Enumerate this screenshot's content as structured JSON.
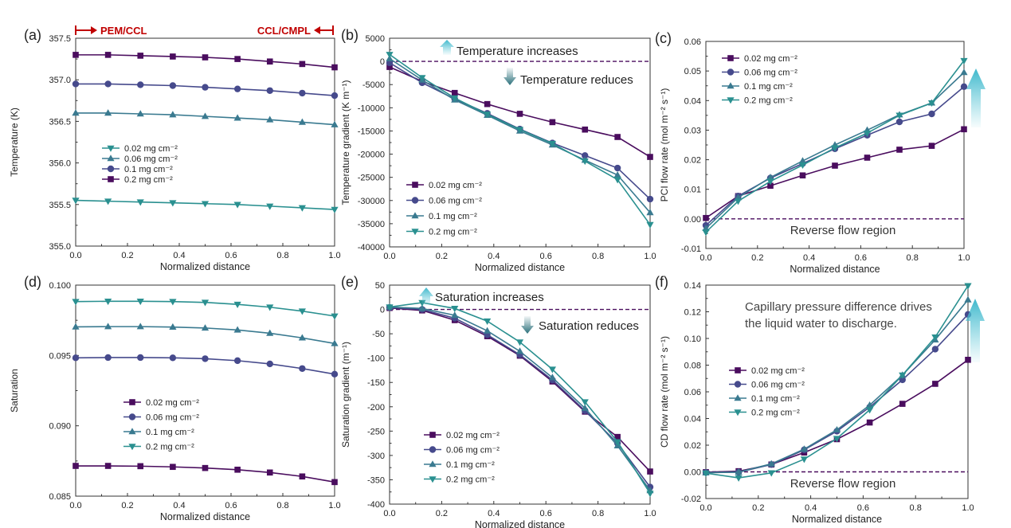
{
  "figure": {
    "xlabel": "Normalized distance",
    "annotations": {
      "pem_ccl": "PEM/CCL",
      "ccl_cmpl": "CCL/CMPL",
      "temp_increases": "Temperature increases",
      "temp_reduces": "Temperature reduces",
      "sat_increases": "Saturation increases",
      "sat_reduces": "Saturation reduces",
      "reverse_flow": "Reverse flow region",
      "capillary_line1": "Capillary pressure difference drives",
      "capillary_line2": "the liquid water to discharge."
    }
  },
  "colors": {
    "s0": "#4a0d5e",
    "s1": "#464a8c",
    "s2": "#3a7a90",
    "s3": "#2a9090",
    "annotation_red": "#c00000",
    "arrow_up": "#5cc8d8",
    "arrow_down": "#2a6f7a",
    "dashed": "#4a0d5e"
  },
  "chart_data": [
    {
      "panel": "(a)",
      "type": "line",
      "xlabel": "Normalized distance",
      "ylabel": "Temperature (K)",
      "xlim": [
        0,
        1
      ],
      "ylim": [
        355.0,
        357.5
      ],
      "xticks": [
        0.0,
        0.2,
        0.4,
        0.6,
        0.8,
        1.0
      ],
      "xtick_labels": [
        "0.0",
        "0.2",
        "0.4",
        "0.6",
        "0.8",
        "1.0"
      ],
      "yticks": [
        355.0,
        355.5,
        356.0,
        356.5,
        357.0,
        357.5
      ],
      "ytick_labels": [
        "355.0",
        "355.5",
        "356.0",
        "356.5",
        "357.0",
        "357.5"
      ],
      "legend_position": "center-left",
      "legend_order": [
        3,
        2,
        1,
        0
      ],
      "x": [
        0,
        0.125,
        0.25,
        0.375,
        0.5,
        0.625,
        0.75,
        0.875,
        1.0
      ],
      "series": [
        {
          "name": "0.2 mg cm⁻²",
          "marker": "square",
          "values": [
            357.3,
            357.3,
            357.29,
            357.28,
            357.27,
            357.25,
            357.22,
            357.19,
            357.15
          ]
        },
        {
          "name": "0.1 mg cm⁻²",
          "marker": "circle",
          "values": [
            356.95,
            356.95,
            356.94,
            356.93,
            356.91,
            356.89,
            356.87,
            356.84,
            356.81
          ]
        },
        {
          "name": "0.06 mg cm⁻²",
          "marker": "triangle-up",
          "values": [
            356.6,
            356.6,
            356.59,
            356.58,
            356.56,
            356.54,
            356.52,
            356.49,
            356.46
          ]
        },
        {
          "name": "0.02 mg cm⁻²",
          "marker": "triangle-down",
          "values": [
            355.55,
            355.54,
            355.53,
            355.52,
            355.51,
            355.5,
            355.48,
            355.46,
            355.44
          ]
        }
      ]
    },
    {
      "panel": "(b)",
      "type": "line",
      "xlabel": "Normalized distance",
      "ylabel": "Temperature gradient (K m⁻¹)",
      "xlim": [
        0,
        1
      ],
      "ylim": [
        -40000,
        5000
      ],
      "xticks": [
        0.0,
        0.2,
        0.4,
        0.6,
        0.8,
        1.0
      ],
      "xtick_labels": [
        "0.0",
        "0.2",
        "0.4",
        "0.6",
        "0.8",
        "1.0"
      ],
      "yticks": [
        -40000,
        -35000,
        -30000,
        -25000,
        -20000,
        -15000,
        -10000,
        -5000,
        0,
        5000
      ],
      "ytick_labels": [
        "-40000",
        "-35000",
        "-30000",
        "-25000",
        "-20000",
        "-15000",
        "-10000",
        "-5000",
        "0",
        "5000"
      ],
      "zero_line": true,
      "legend_position": "bottom-left",
      "legend_order": [
        0,
        1,
        2,
        3
      ],
      "x": [
        0,
        0.125,
        0.25,
        0.375,
        0.5,
        0.625,
        0.75,
        0.875,
        1.0
      ],
      "series": [
        {
          "name": "0.02 mg cm⁻²",
          "marker": "square",
          "values": [
            -1200,
            -4300,
            -6800,
            -9200,
            -11300,
            -13100,
            -14700,
            -16300,
            -20600
          ]
        },
        {
          "name": "0.06 mg cm⁻²",
          "marker": "circle",
          "values": [
            -300,
            -4600,
            -8100,
            -11200,
            -14600,
            -17600,
            -20300,
            -23000,
            -29700
          ]
        },
        {
          "name": "0.1 mg cm⁻²",
          "marker": "triangle-up",
          "values": [
            600,
            -4000,
            -8300,
            -11600,
            -15000,
            -18000,
            -21300,
            -24500,
            -32600
          ]
        },
        {
          "name": "0.2 mg cm⁻²",
          "marker": "triangle-down",
          "values": [
            1500,
            -3500,
            -7900,
            -11400,
            -14700,
            -17700,
            -21500,
            -25500,
            -35200
          ]
        }
      ]
    },
    {
      "panel": "(c)",
      "type": "line",
      "xlabel": "Normalized distance",
      "ylabel": "PCI flow rate (mol m⁻² s⁻¹)",
      "xlim": [
        0,
        1
      ],
      "ylim": [
        -0.01,
        0.06
      ],
      "xticks": [
        0.0,
        0.2,
        0.4,
        0.6,
        0.8,
        1.0
      ],
      "xtick_labels": [
        "0.0",
        "0.2",
        "0.4",
        "0.6",
        "0.8",
        "1.0"
      ],
      "yticks": [
        -0.01,
        0.0,
        0.01,
        0.02,
        0.03,
        0.04,
        0.05,
        0.06
      ],
      "ytick_labels": [
        "-0.01",
        "0.00",
        "0.01",
        "0.02",
        "0.03",
        "0.04",
        "0.05",
        "0.06"
      ],
      "zero_line": true,
      "legend_position": "top-left",
      "legend_order": [
        0,
        1,
        2,
        3
      ],
      "x": [
        0,
        0.125,
        0.25,
        0.375,
        0.5,
        0.625,
        0.75,
        0.875,
        1.0
      ],
      "series": [
        {
          "name": "0.02 mg cm⁻²",
          "marker": "square",
          "values": [
            0.0003,
            0.0077,
            0.0112,
            0.0147,
            0.018,
            0.0207,
            0.0234,
            0.0247,
            0.0303
          ]
        },
        {
          "name": "0.06 mg cm⁻²",
          "marker": "circle",
          "values": [
            -0.0022,
            0.0077,
            0.0138,
            0.0187,
            0.0237,
            0.0283,
            0.0328,
            0.0355,
            0.0447
          ]
        },
        {
          "name": "0.1 mg cm⁻²",
          "marker": "triangle-up",
          "values": [
            -0.0032,
            0.0072,
            0.014,
            0.0196,
            0.025,
            0.03,
            0.0352,
            0.0392,
            0.0495
          ]
        },
        {
          "name": "0.2 mg cm⁻²",
          "marker": "triangle-down",
          "values": [
            -0.0045,
            0.006,
            0.0127,
            0.0182,
            0.024,
            0.029,
            0.035,
            0.0392,
            0.0535
          ]
        }
      ]
    },
    {
      "panel": "(d)",
      "type": "line",
      "xlabel": "Normalized distance",
      "ylabel": "Saturation",
      "xlim": [
        0,
        1
      ],
      "ylim": [
        0.085,
        0.1
      ],
      "xticks": [
        0.0,
        0.2,
        0.4,
        0.6,
        0.8,
        1.0
      ],
      "xtick_labels": [
        "0.0",
        "0.2",
        "0.4",
        "0.6",
        "0.8",
        "1.0"
      ],
      "yticks": [
        0.085,
        0.09,
        0.095,
        0.1
      ],
      "ytick_labels": [
        "0.085",
        "0.090",
        "0.095",
        "0.100"
      ],
      "legend_position": "center-left",
      "legend_order": [
        0,
        1,
        2,
        3
      ],
      "x": [
        0,
        0.125,
        0.25,
        0.375,
        0.5,
        0.625,
        0.75,
        0.875,
        1.0
      ],
      "series": [
        {
          "name": "0.02 mg cm⁻²",
          "marker": "square",
          "values": [
            0.08715,
            0.08715,
            0.08713,
            0.08708,
            0.087,
            0.08688,
            0.08668,
            0.0864,
            0.086
          ]
        },
        {
          "name": "0.06 mg cm⁻²",
          "marker": "circle",
          "values": [
            0.09483,
            0.09485,
            0.09485,
            0.09483,
            0.09477,
            0.09463,
            0.0944,
            0.09407,
            0.09367
          ]
        },
        {
          "name": "0.1 mg cm⁻²",
          "marker": "triangle-up",
          "values": [
            0.09703,
            0.09705,
            0.09705,
            0.09702,
            0.09695,
            0.09681,
            0.09658,
            0.09625,
            0.09585
          ]
        },
        {
          "name": "0.2 mg cm⁻²",
          "marker": "triangle-down",
          "values": [
            0.09883,
            0.09885,
            0.09885,
            0.09883,
            0.09877,
            0.09863,
            0.09843,
            0.09815,
            0.0978
          ]
        }
      ]
    },
    {
      "panel": "(e)",
      "type": "line",
      "xlabel": "Normalized distance",
      "ylabel": "Saturation gradient (m⁻¹)",
      "xlim": [
        0,
        1
      ],
      "ylim": [
        -400,
        50
      ],
      "xticks": [
        0.0,
        0.2,
        0.4,
        0.6,
        0.8,
        1.0
      ],
      "xtick_labels": [
        "0.0",
        "0.2",
        "0.4",
        "0.6",
        "0.8",
        "1.0"
      ],
      "yticks": [
        -400,
        -350,
        -300,
        -250,
        -200,
        -150,
        -100,
        -50,
        0,
        50
      ],
      "ytick_labels": [
        "-400",
        "-350",
        "-300",
        "-250",
        "-200",
        "-150",
        "-100",
        "-50",
        "0",
        "50"
      ],
      "zero_line": true,
      "legend_position": "bottom-left",
      "legend_order": [
        0,
        1,
        2,
        3
      ],
      "x": [
        0,
        0.125,
        0.25,
        0.375,
        0.5,
        0.625,
        0.75,
        0.875,
        1.0
      ],
      "series": [
        {
          "name": "0.02 mg cm⁻²",
          "marker": "square",
          "values": [
            3,
            -2,
            -22,
            -55,
            -95,
            -148,
            -210,
            -262,
            -333
          ]
        },
        {
          "name": "0.06 mg cm⁻²",
          "marker": "circle",
          "values": [
            4,
            0,
            -18,
            -52,
            -93,
            -145,
            -208,
            -275,
            -365
          ]
        },
        {
          "name": "0.1 mg cm⁻²",
          "marker": "triangle-up",
          "values": [
            5,
            2,
            -12,
            -44,
            -86,
            -140,
            -203,
            -280,
            -372
          ]
        },
        {
          "name": "0.2 mg cm⁻²",
          "marker": "triangle-down",
          "values": [
            5,
            14,
            2,
            -24,
            -67,
            -123,
            -190,
            -272,
            -378
          ]
        }
      ]
    },
    {
      "panel": "(f)",
      "type": "line",
      "xlabel": "Normalized distance",
      "ylabel": "CD flow rate (mol m⁻² s⁻¹)",
      "xlim": [
        0,
        1
      ],
      "ylim": [
        -0.02,
        0.14
      ],
      "xticks": [
        0.0,
        0.2,
        0.4,
        0.6,
        0.8,
        1.0
      ],
      "xtick_labels": [
        "0.0",
        "0.2",
        "0.4",
        "0.6",
        "0.8",
        "1.0"
      ],
      "yticks": [
        -0.02,
        0.0,
        0.02,
        0.04,
        0.06,
        0.08,
        0.1,
        0.12,
        0.14
      ],
      "ytick_labels": [
        "-0.02",
        "0.00",
        "0.02",
        "0.04",
        "0.06",
        "0.08",
        "0.10",
        "0.12",
        "0.14"
      ],
      "zero_line": true,
      "legend_position": "center-left",
      "legend_order": [
        0,
        1,
        2,
        3
      ],
      "x": [
        0,
        0.125,
        0.25,
        0.375,
        0.5,
        0.625,
        0.75,
        0.875,
        1.0
      ],
      "series": [
        {
          "name": "0.02 mg cm⁻²",
          "marker": "square",
          "values": [
            -0.0002,
            0.0005,
            0.0055,
            0.0145,
            0.0245,
            0.037,
            0.051,
            0.066,
            0.084
          ]
        },
        {
          "name": "0.06 mg cm⁻²",
          "marker": "circle",
          "values": [
            -0.0005,
            -0.0003,
            0.0055,
            0.0165,
            0.0305,
            0.0485,
            0.069,
            0.092,
            0.118
          ]
        },
        {
          "name": "0.1 mg cm⁻²",
          "marker": "triangle-up",
          "values": [
            -0.0007,
            -0.0002,
            0.006,
            0.017,
            0.0315,
            0.05,
            0.0725,
            0.099,
            0.129
          ]
        },
        {
          "name": "0.2 mg cm⁻²",
          "marker": "triangle-down",
          "values": [
            -0.001,
            -0.0045,
            -0.0008,
            0.0095,
            0.025,
            0.0465,
            0.0725,
            0.101,
            0.1395
          ]
        }
      ]
    }
  ]
}
